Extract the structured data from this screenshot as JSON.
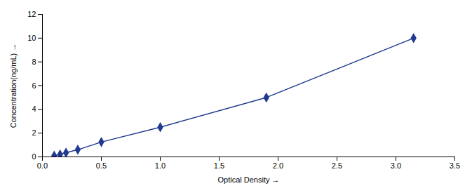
{
  "chart_data": {
    "type": "line",
    "xlabel": "Optical Density",
    "ylabel": "Concentration(ng/mL)",
    "x": [
      0.1,
      0.15,
      0.2,
      0.3,
      0.5,
      1.0,
      1.9,
      3.15
    ],
    "values": [
      0.1,
      0.2,
      0.35,
      0.6,
      1.25,
      2.5,
      5.0,
      10.0
    ],
    "color": "#1F3A8F",
    "marker": "diamond",
    "xlim": [
      0,
      3.5
    ],
    "ylim": [
      0,
      12
    ],
    "xticks": [
      {
        "value": 0,
        "label": "0.0"
      },
      0.5,
      {
        "value": 1.0,
        "label": "1.0"
      },
      1.5,
      {
        "value": 2.0,
        "label": "2.0"
      },
      2.5,
      {
        "value": 3.0,
        "label": "3.0"
      },
      3.5
    ],
    "yticks": [
      0,
      2,
      4,
      6,
      8,
      10,
      12
    ],
    "grid": false
  }
}
